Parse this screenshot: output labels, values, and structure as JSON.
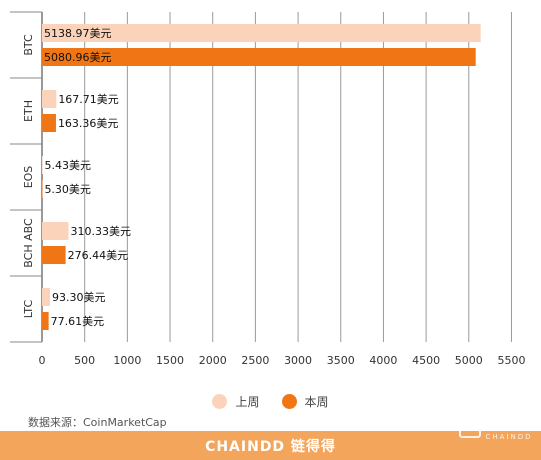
{
  "chart_data": {
    "type": "bar",
    "orientation": "horizontal",
    "categories": [
      "BTC",
      "ETH",
      "EOS",
      "BCH ABC",
      "LTC"
    ],
    "series": [
      {
        "name": "上周",
        "values": [
          5138.97,
          167.71,
          5.43,
          310.33,
          93.3
        ],
        "color": "#fbd3bb"
      },
      {
        "name": "本周",
        "values": [
          5080.96,
          163.36,
          5.3,
          276.44,
          77.61
        ],
        "color": "#f07514"
      }
    ],
    "data_labels": [
      [
        "5138.97美元",
        "167.71美元",
        "5.43美元",
        "310.33美元",
        "93.30美元"
      ],
      [
        "5080.96美元",
        "163.36美元",
        "5.30美元",
        "276.44美元",
        "77.61美元"
      ]
    ],
    "x_ticks": [
      0,
      500,
      1000,
      1500,
      2000,
      2500,
      3000,
      3500,
      4000,
      4500,
      5000,
      5500
    ],
    "xlim": [
      0,
      5600
    ],
    "grid": true,
    "legend_position": "bottom"
  },
  "legend": {
    "items": [
      {
        "label": "上周",
        "color": "#fbd3bb"
      },
      {
        "label": "本周",
        "color": "#f07514"
      }
    ]
  },
  "source": "数据来源：CoinMarketCap",
  "footer": {
    "brand": "CHAINDD 链得得"
  },
  "watermark": {
    "main": "链得得",
    "sub": "CHAINDD"
  }
}
